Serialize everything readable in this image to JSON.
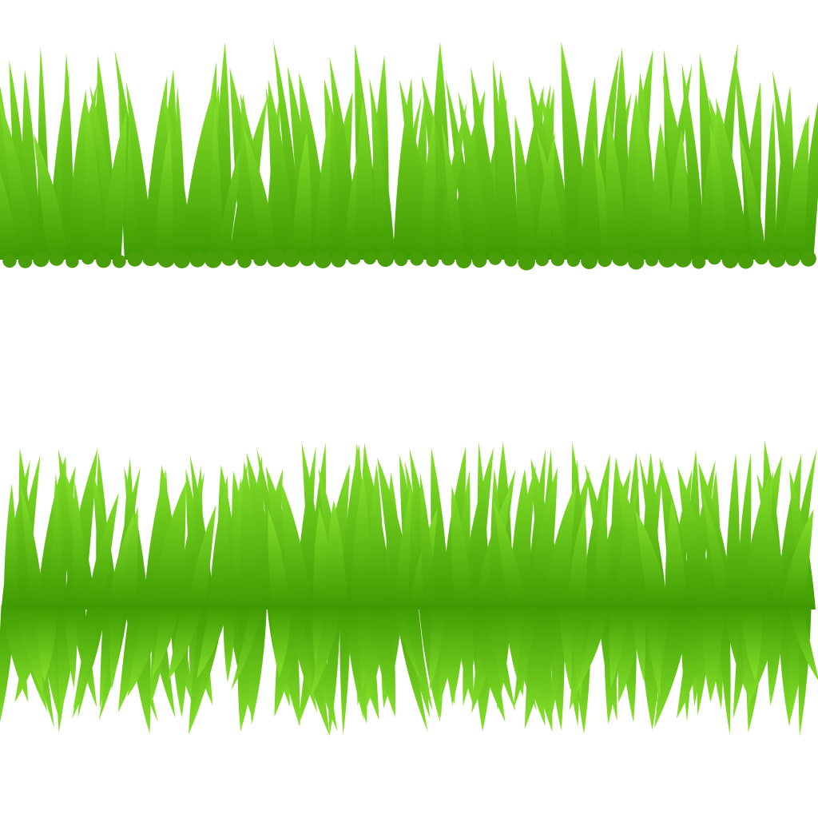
{
  "illustration": {
    "subject": "grass-clip-art",
    "strips": [
      {
        "style": "grass-with-rounded-roots",
        "blade_count": 68
      },
      {
        "style": "grass-with-mirrored-reflection",
        "blade_count": 80
      }
    ]
  },
  "colors": {
    "background": "#ffffff",
    "blade_tip": "#86e12c",
    "blade_base": "#3e9a00",
    "root": "#4a9e0a"
  }
}
